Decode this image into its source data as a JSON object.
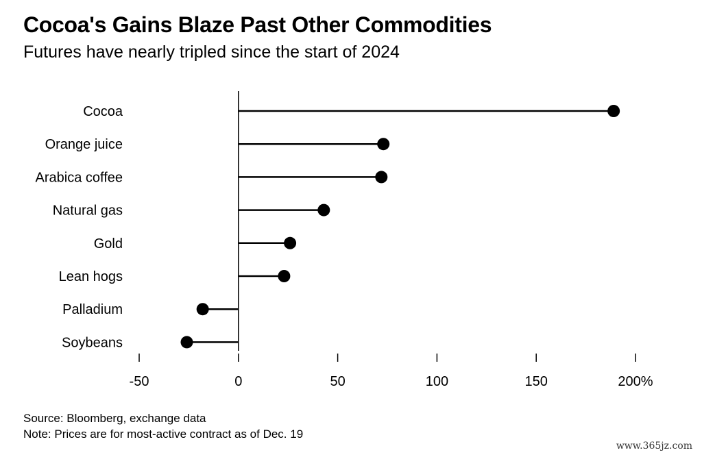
{
  "header": {
    "title": "Cocoa's Gains Blaze Past Other Commodities",
    "subtitle": "Futures have nearly tripled since the start of 2024"
  },
  "footer": {
    "source": "Source: Bloomberg, exchange data",
    "note": "Note: Prices are for most-active contract as of Dec. 19"
  },
  "watermark": "www.365jz.com",
  "chart_data": {
    "type": "lollipop",
    "categories": [
      "Cocoa",
      "Orange juice",
      "Arabica coffee",
      "Natural gas",
      "Gold",
      "Lean hogs",
      "Palladium",
      "Soybeans"
    ],
    "values": [
      189,
      73,
      72,
      43,
      26,
      23,
      -18,
      -26
    ],
    "xlim": [
      -50,
      200
    ],
    "ticks": [
      -50,
      0,
      50,
      100,
      150,
      200
    ],
    "tick_labels": [
      "-50",
      "0",
      "50",
      "100",
      "150",
      "200%"
    ],
    "grid": false,
    "color": "#000000"
  }
}
